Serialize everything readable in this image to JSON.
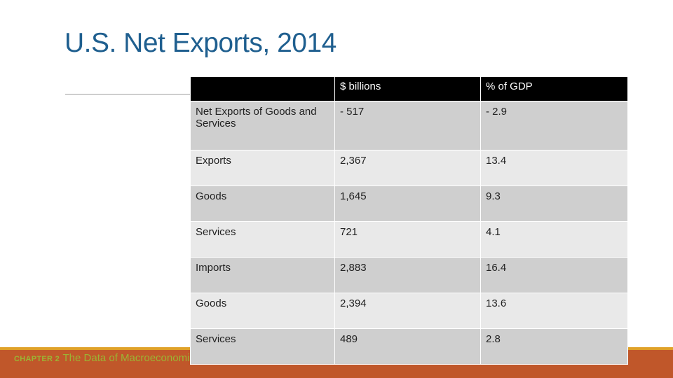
{
  "slide": {
    "title": "U.S. Net Exports, 2014"
  },
  "table": {
    "headers": [
      "",
      "$ billions",
      "% of GDP"
    ],
    "rows": [
      [
        "Net Exports of Goods and Services",
        "- 517",
        "- 2.9"
      ],
      [
        "Exports",
        "2,367",
        "13.4"
      ],
      [
        "Goods",
        "1,645",
        "9.3"
      ],
      [
        "Services",
        "721",
        "4.1"
      ],
      [
        "Imports",
        "2,883",
        "16.4"
      ],
      [
        "Goods",
        "2,394",
        "13.6"
      ],
      [
        "Services",
        "489",
        "2.8"
      ]
    ]
  },
  "footer": {
    "chapter": "CHAPTER 2",
    "subtitle": "The Data of Macroeconomics"
  },
  "colors": {
    "title": "#1f5f8f",
    "header_bg": "#000000",
    "row_dark": "#cfcfcf",
    "row_light": "#e9e9e9",
    "footer_bar": "#c0572a",
    "footer_line": "#e0a128",
    "footer_text": "#9bb534"
  }
}
